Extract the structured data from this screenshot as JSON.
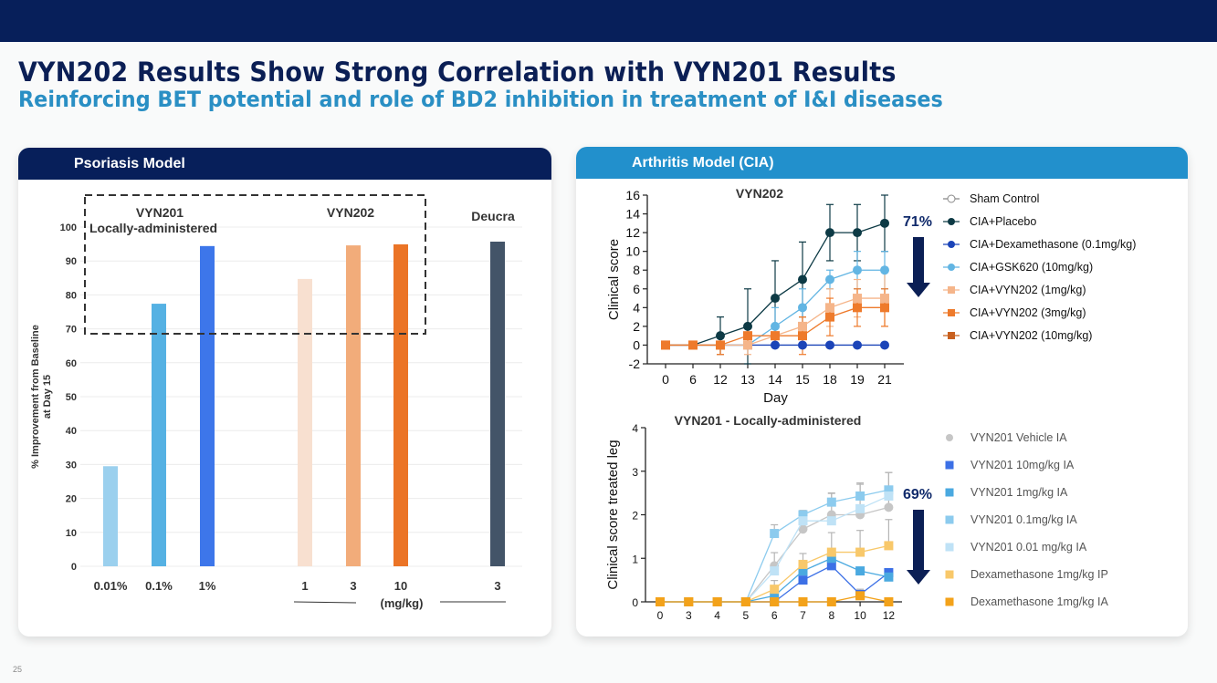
{
  "slide": {
    "title": "VYN202 Results Show Strong Correlation with VYN201 Results",
    "subtitle": "Reinforcing BET potential and role of BD2 inhibition in treatment of I&I diseases",
    "page_number": "25"
  },
  "colors": {
    "navy": "#071f5a",
    "accent_blue": "#2290cc",
    "title_navy": "#0b1f55",
    "subtitle_blue": "#2a8fc4"
  },
  "panels": {
    "left": {
      "header": "Psoriasis Model"
    },
    "right": {
      "header": "Arthritis Model (CIA)"
    }
  },
  "chart_data": [
    {
      "id": "psoriasis",
      "type": "bar",
      "title": "",
      "ylabel": "% Improvement from Baseline at Day 15",
      "ylabel_lines": [
        "% Improvement from Baseline",
        "at Day 15"
      ],
      "xlabel": "",
      "ylim": [
        0,
        100
      ],
      "yticks": [
        0,
        10,
        20,
        30,
        40,
        50,
        60,
        70,
        80,
        90,
        100
      ],
      "grid": true,
      "groups": [
        {
          "label": "VYN201",
          "label2": "Locally-administered"
        },
        {
          "label": "VYN202"
        },
        {
          "label": "Deucra"
        }
      ],
      "bars": [
        {
          "category": "0.01%",
          "group": "VYN201",
          "value": 29.5,
          "color": "#9bd0ee"
        },
        {
          "category": "0.1%",
          "group": "VYN201",
          "value": 77.4,
          "color": "#55b1e3"
        },
        {
          "category": "1%",
          "group": "VYN201",
          "value": 94.4,
          "color": "#3d76ea"
        },
        {
          "category": "1",
          "group": "VYN202",
          "value": 84.7,
          "color": "#f8e0d0"
        },
        {
          "category": "3",
          "group": "VYN202",
          "value": 94.6,
          "color": "#f2ac7a"
        },
        {
          "category": "10",
          "group": "VYN202",
          "value": 94.9,
          "color": "#eb7426"
        },
        {
          "category": "3",
          "group": "Deucra",
          "value": 95.7,
          "color": "#435468"
        }
      ],
      "unit_label": "(mg/kg)",
      "highlight_box": {
        "from_value": 68,
        "covers": [
          "VYN201",
          "VYN202"
        ],
        "style": "dashed"
      }
    },
    {
      "id": "cia-vyn202",
      "type": "line",
      "title": "VYN202",
      "xlabel": "Day",
      "ylabel": "Clinical score",
      "x": [
        0,
        6,
        12,
        13,
        14,
        15,
        18,
        19,
        21
      ],
      "ylim": [
        -2,
        16
      ],
      "yticks": [
        -2,
        0,
        2,
        4,
        6,
        8,
        10,
        12,
        14,
        16
      ],
      "grid": false,
      "legend_position": "right",
      "annotation": {
        "text": "71%",
        "arrow": "down"
      },
      "series": [
        {
          "name": "Sham Control",
          "marker": "circle-open",
          "color": "#888888",
          "values": [
            null,
            null,
            null,
            null,
            null,
            null,
            null,
            null,
            null
          ]
        },
        {
          "name": "CIA+Placebo",
          "marker": "circle",
          "color": "#0d3a45",
          "values": [
            0,
            0,
            1,
            2,
            5,
            7,
            12,
            12,
            13
          ],
          "err": [
            0,
            0,
            2,
            4,
            4,
            4,
            3,
            3,
            3
          ]
        },
        {
          "name": "CIA+Dexamethasone (0.1mg/kg)",
          "marker": "circle",
          "color": "#1b44b8",
          "values": [
            0,
            0,
            0,
            0,
            0,
            0,
            0,
            0,
            0
          ]
        },
        {
          "name": "CIA+GSK620 (10mg/kg)",
          "marker": "circle",
          "color": "#62b5e3",
          "values": [
            0,
            0,
            0,
            0,
            2,
            4,
            7,
            8,
            8
          ],
          "err": [
            0,
            0,
            0,
            0,
            2,
            2,
            1,
            2,
            2
          ]
        },
        {
          "name": "CIA+VYN202 (1mg/kg)",
          "marker": "square",
          "color": "#f5b58a",
          "values": [
            0,
            0,
            0,
            0,
            1,
            2,
            4,
            5,
            5
          ],
          "err": [
            0,
            0,
            1,
            1,
            1,
            1,
            2,
            2,
            3
          ]
        },
        {
          "name": "CIA+VYN202 (3mg/kg)",
          "marker": "square",
          "color": "#ee7a2b",
          "values": [
            0,
            0,
            0,
            1,
            1,
            1,
            3,
            4,
            4
          ],
          "err": [
            0,
            0,
            1,
            1,
            1,
            2,
            2,
            2,
            2
          ]
        },
        {
          "name": "CIA+VYN202 (10mg/kg)",
          "marker": "square",
          "color": "#c8601f",
          "values": [
            null,
            null,
            null,
            null,
            null,
            null,
            null,
            null,
            null
          ]
        }
      ]
    },
    {
      "id": "cia-vyn201",
      "type": "line",
      "title": "VYN201 - Locally-administered",
      "xlabel": "",
      "ylabel": "Clinical score treated leg",
      "x": [
        0,
        3,
        4,
        5,
        6,
        7,
        8,
        10,
        12
      ],
      "ylim": [
        0,
        4
      ],
      "yticks": [
        0,
        1,
        2,
        3,
        4
      ],
      "grid": false,
      "legend_position": "right",
      "annotation": {
        "text": "69%",
        "arrow": "down"
      },
      "series": [
        {
          "name": "VYN201 Vehicle IA",
          "marker": "circle",
          "color": "#c6c6c6",
          "values": [
            0,
            0,
            0,
            0,
            0.83,
            1.67,
            2.0,
            2.0,
            2.17
          ],
          "err": [
            0,
            0,
            0,
            0,
            0.3,
            0.4,
            0.5,
            0.7,
            0.8
          ]
        },
        {
          "name": "VYN201 10mg/kg IA",
          "marker": "square",
          "color": "#3c70e6",
          "values": [
            0,
            0,
            0,
            0,
            0,
            0.5,
            0.83,
            0.17,
            0.67
          ]
        },
        {
          "name": "VYN201 1mg/kg IA",
          "marker": "square",
          "color": "#4aa9e0",
          "values": [
            0,
            0,
            0,
            0,
            0.14,
            0.71,
            1.0,
            0.71,
            0.57
          ]
        },
        {
          "name": "VYN201 0.1mg/kg IA",
          "marker": "square",
          "color": "#8ccbee",
          "values": [
            0,
            0,
            0,
            0,
            1.57,
            2.0,
            2.29,
            2.43,
            2.57
          ],
          "err": [
            0,
            0,
            0,
            0,
            0.2,
            0.1,
            0.2,
            0.3,
            0.4
          ]
        },
        {
          "name": "VYN201 0.01 mg/kg IA",
          "marker": "square",
          "color": "#bfe2f6",
          "values": [
            0,
            0,
            0,
            0,
            0.71,
            1.86,
            1.86,
            2.14,
            2.43
          ]
        },
        {
          "name": "Dexamethasone 1mg/kg IP",
          "marker": "square",
          "color": "#f8c86a",
          "values": [
            0,
            0,
            0,
            0,
            0.29,
            0.86,
            1.14,
            1.14,
            1.29
          ],
          "err": [
            0,
            0,
            0,
            0,
            0.2,
            0.25,
            0.45,
            0.5,
            0.6
          ]
        },
        {
          "name": "Dexamethasone 1mg/kg IA",
          "marker": "square",
          "color": "#f3a21a",
          "values": [
            0,
            0,
            0,
            0,
            0,
            0,
            0,
            0.14,
            0
          ],
          "err": [
            0,
            0,
            0,
            0,
            0,
            0,
            0,
            0.15,
            0
          ]
        }
      ]
    }
  ]
}
